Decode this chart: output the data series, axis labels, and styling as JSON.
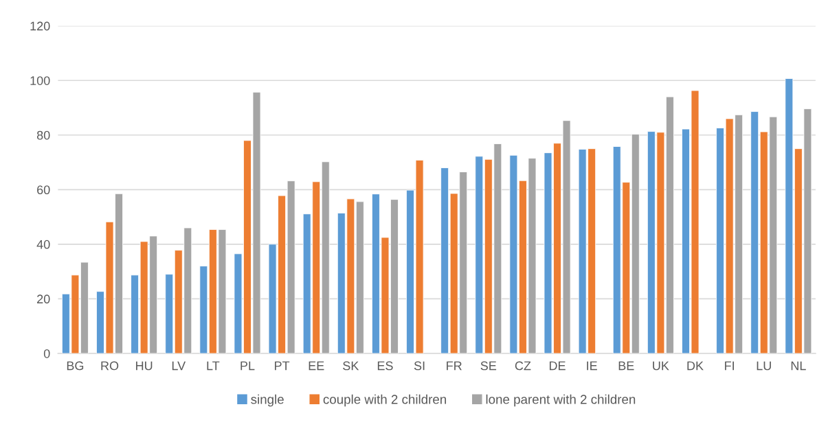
{
  "chart_data": {
    "type": "bar",
    "categories": [
      "BG",
      "RO",
      "HU",
      "LV",
      "LT",
      "PL",
      "PT",
      "EE",
      "SK",
      "ES",
      "SI",
      "FR",
      "SE",
      "CZ",
      "DE",
      "IE",
      "BE",
      "UK",
      "DK",
      "FI",
      "LU",
      "NL"
    ],
    "series": [
      {
        "name": "single",
        "color": "#5b9bd5",
        "values": [
          21.8,
          22.7,
          28.7,
          29,
          32,
          36.5,
          40,
          51.1,
          51.4,
          58.4,
          59.8,
          68,
          72.2,
          72.6,
          73.5,
          74.8,
          75.8,
          81.3,
          82.2,
          82.6,
          88.6,
          100.7
        ]
      },
      {
        "name": "couple with 2 children",
        "color": "#ed7d31",
        "values": [
          28.7,
          48.2,
          41,
          37.8,
          45.4,
          78,
          57.8,
          62.9,
          56.6,
          42.5,
          70.8,
          58.6,
          71.1,
          63.3,
          77,
          75,
          62.7,
          81,
          96.3,
          86,
          81.2,
          75
        ]
      },
      {
        "name": "lone parent with 2 children",
        "color": "#a5a5a5",
        "values": [
          33.4,
          58.5,
          43,
          46,
          45.4,
          95.7,
          63.2,
          70.2,
          55.6,
          56.4,
          null,
          66.5,
          76.8,
          71.5,
          85.3,
          null,
          80.3,
          94,
          null,
          87.4,
          86.7,
          89.6
        ]
      }
    ],
    "ylim": [
      0,
      120
    ],
    "yticks": [
      0,
      20,
      40,
      60,
      80,
      100,
      120
    ],
    "grid": "y",
    "legend": "bottom"
  }
}
